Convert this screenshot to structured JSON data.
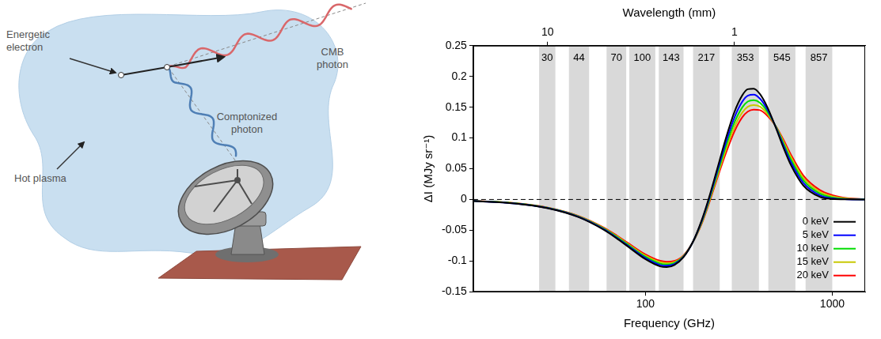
{
  "diagram": {
    "labels": {
      "electron": "Energetic electron",
      "cmb_photon": "CMB photon",
      "plasma": "Hot plasma",
      "comptonized_photon": "Comptonized photon"
    }
  },
  "chart_data": {
    "type": "line",
    "x_label": "Frequency (GHz)",
    "y_label": "ΔI (MJy sr⁻¹)",
    "x2_label": "Wavelength (mm)",
    "log": "x",
    "grid": false,
    "legend": "lower right",
    "xlim": [
      12,
      1500
    ],
    "xticks": [
      100,
      1000
    ],
    "x2lim": [
      25,
      0.2
    ],
    "x2ticks": [
      10,
      1
    ],
    "ylim": [
      -0.15,
      0.25
    ],
    "yticks": [
      -0.15,
      -0.1,
      -0.05,
      0,
      0.05,
      0.1,
      0.15,
      0.2,
      0.25
    ],
    "hlines": [
      0
    ],
    "bands": [
      {
        "label": "30",
        "lo": 27,
        "hi": 33
      },
      {
        "label": "44",
        "lo": 39,
        "hi": 50
      },
      {
        "label": "70",
        "lo": 62,
        "hi": 79
      },
      {
        "label": "100",
        "lo": 82,
        "hi": 113
      },
      {
        "label": "143",
        "lo": 118,
        "hi": 160
      },
      {
        "label": "217",
        "lo": 180,
        "hi": 250
      },
      {
        "label": "353",
        "lo": 290,
        "hi": 405
      },
      {
        "label": "545",
        "lo": 455,
        "hi": 635
      },
      {
        "label": "857",
        "lo": 720,
        "hi": 1000
      }
    ],
    "x": [
      12,
      20,
      30,
      44,
      60,
      70,
      80,
      100,
      120,
      130,
      143,
      160,
      180,
      200,
      217,
      240,
      270,
      300,
      330,
      353,
      380,
      410,
      450,
      500,
      545,
      600,
      700,
      857,
      1000,
      1200,
      1500
    ],
    "series": [
      {
        "name": "0 keV",
        "color": "#000000",
        "line_style": "solid",
        "values": [
          -0.0024,
          -0.0065,
          -0.0142,
          -0.0289,
          -0.0494,
          -0.0628,
          -0.0757,
          -0.097,
          -0.1088,
          -0.11,
          -0.1065,
          -0.0938,
          -0.0682,
          -0.0339,
          -0.001,
          0.0451,
          0.1001,
          0.1427,
          0.1693,
          0.1792,
          0.1802,
          0.1715,
          0.1498,
          0.116,
          0.0861,
          0.0563,
          0.0227,
          0.0043,
          0.0008,
          0.0001,
          0
        ]
      },
      {
        "name": "5 keV",
        "color": "#0000ff",
        "line_style": "solid",
        "values": [
          -0.0024,
          -0.0064,
          -0.014,
          -0.0284,
          -0.0485,
          -0.0617,
          -0.0743,
          -0.0951,
          -0.1066,
          -0.1078,
          -0.105,
          -0.0932,
          -0.0685,
          -0.0355,
          -0.0035,
          0.041,
          0.0933,
          0.1337,
          0.159,
          0.1687,
          0.1704,
          0.164,
          0.146,
          0.117,
          0.0896,
          0.061,
          0.027,
          0.0068,
          0.0018,
          0.0003,
          0
        ]
      },
      {
        "name": "10 keV",
        "color": "#00dd00",
        "line_style": "solid",
        "values": [
          -0.0023,
          -0.0063,
          -0.0137,
          -0.0279,
          -0.0476,
          -0.0605,
          -0.0729,
          -0.0932,
          -0.1043,
          -0.1056,
          -0.1034,
          -0.0925,
          -0.0687,
          -0.037,
          -0.0058,
          0.0373,
          0.087,
          0.1255,
          0.1497,
          0.1592,
          0.1614,
          0.1572,
          0.1425,
          0.1178,
          0.0928,
          0.0654,
          0.0312,
          0.0096,
          0.0032,
          0.0008,
          0.0001
        ]
      },
      {
        "name": "15 keV",
        "color": "#c8c800",
        "line_style": "solid",
        "values": [
          -0.0023,
          -0.0062,
          -0.0135,
          -0.0274,
          -0.0467,
          -0.0594,
          -0.0715,
          -0.0912,
          -0.102,
          -0.1034,
          -0.1018,
          -0.0917,
          -0.0688,
          -0.0384,
          -0.008,
          0.0338,
          0.0812,
          0.118,
          0.1413,
          0.1507,
          0.1534,
          0.151,
          0.1392,
          0.1184,
          0.0957,
          0.0695,
          0.0352,
          0.0125,
          0.005,
          0.0014,
          0.0002
        ]
      },
      {
        "name": "20 keV",
        "color": "#ff0000",
        "line_style": "solid",
        "values": [
          -0.0022,
          -0.006,
          -0.0132,
          -0.0269,
          -0.0458,
          -0.0582,
          -0.07,
          -0.0893,
          -0.0997,
          -0.1012,
          -0.1,
          -0.0908,
          -0.0688,
          -0.0397,
          -0.01,
          0.0306,
          0.0758,
          0.111,
          0.1336,
          0.1428,
          0.146,
          0.1452,
          0.136,
          0.1188,
          0.0984,
          0.0733,
          0.039,
          0.0155,
          0.007,
          0.0022,
          0.0004
        ]
      }
    ]
  }
}
